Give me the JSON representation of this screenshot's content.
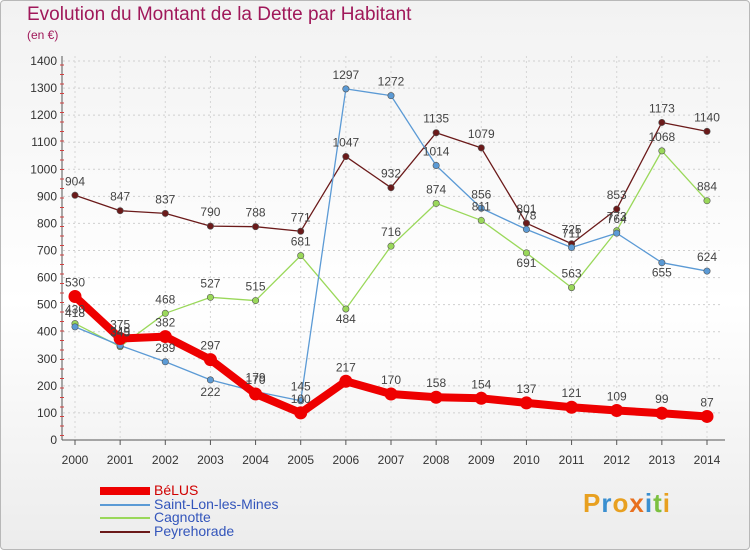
{
  "title": "Evolution du Montant de la Dette par Habitant",
  "subtitle": "(en €)",
  "logo": {
    "text": "Proxiti",
    "colors": [
      "#e8a020",
      "#3a8fd0",
      "#e8a020",
      "#e87020",
      "#3a8fd0",
      "#7cc040",
      "#e8a020"
    ]
  },
  "chart_data": {
    "type": "line",
    "title": "Evolution du Montant de la Dette par Habitant",
    "ylabel": "(en €)",
    "xlabel": "",
    "ylim": [
      0,
      1400
    ],
    "yticks": [
      0,
      100,
      200,
      300,
      400,
      500,
      600,
      700,
      800,
      900,
      1000,
      1100,
      1200,
      1300,
      1400
    ],
    "categories": [
      "2000",
      "2001",
      "2002",
      "2003",
      "2004",
      "2005",
      "2006",
      "2007",
      "2008",
      "2009",
      "2010",
      "2011",
      "2012",
      "2013",
      "2014"
    ],
    "grid": true,
    "legend_position": "bottom-left",
    "series": [
      {
        "name": "Peyrehorade",
        "color": "#6b1a1a",
        "values": [
          904,
          847,
          837,
          790,
          788,
          771,
          1047,
          932,
          1135,
          1079,
          801,
          725,
          853,
          1173,
          1140
        ]
      },
      {
        "name": "Cagnotte",
        "color": "#9ad85a",
        "values": [
          430,
          345,
          468,
          527,
          515,
          681,
          484,
          716,
          874,
          811,
          691,
          563,
          773,
          1068,
          884
        ]
      },
      {
        "name": "Saint-Lon-les-Mines",
        "color": "#5b9ad5",
        "values": [
          418,
          349,
          289,
          222,
          179,
          145,
          1297,
          1272,
          1014,
          856,
          778,
          711,
          764,
          655,
          624
        ]
      },
      {
        "name": "BéLUS",
        "color": "#ee0000",
        "values": [
          530,
          375,
          382,
          297,
          170,
          100,
          217,
          170,
          158,
          154,
          137,
          121,
          109,
          99,
          87
        ]
      }
    ]
  }
}
